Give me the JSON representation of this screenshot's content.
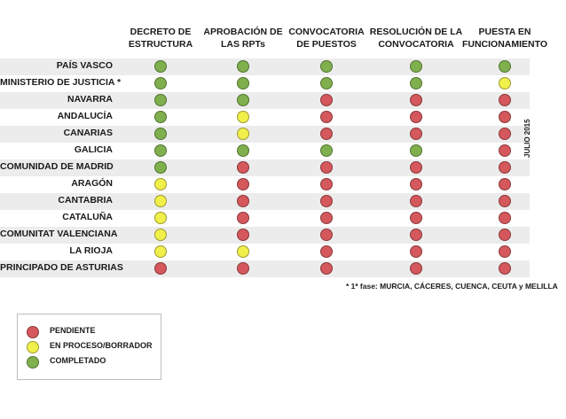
{
  "columns": [
    "DECRETO DE ESTRUCTURA",
    "APROBACIÓN DE LAS RPTs",
    "CONVOCATORIA DE PUESTOS",
    "RESOLUCIÓN DE LA CONVOCATORIA",
    "PUESTA EN FUNCIONAMIENTO"
  ],
  "column_lines": [
    [
      "DECRETO DE",
      "ESTRUCTURA"
    ],
    [
      "APROBACIÓN DE",
      "LAS RPTs"
    ],
    [
      "CONVOCATORIA",
      "DE PUESTOS"
    ],
    [
      "RESOLUCIÓN DE LA",
      "CONVOCATORIA"
    ],
    [
      "PUESTA EN",
      "FUNCIONAMIENTO"
    ]
  ],
  "colors": {
    "red": "#d4585c",
    "yellow": "#f1ef4a",
    "green": "#7fb04d"
  },
  "rows": [
    {
      "label": "PAÍS VASCO",
      "status": [
        "green",
        "green",
        "green",
        "green",
        "green"
      ]
    },
    {
      "label": "MINISTERIO DE JUSTICIA *",
      "status": [
        "green",
        "green",
        "green",
        "green",
        "yellow"
      ]
    },
    {
      "label": "NAVARRA",
      "status": [
        "green",
        "green",
        "red",
        "red",
        "red"
      ]
    },
    {
      "label": "ANDALUCÍA",
      "status": [
        "green",
        "yellow",
        "red",
        "red",
        "red"
      ]
    },
    {
      "label": "CANARIAS",
      "status": [
        "green",
        "yellow",
        "red",
        "red",
        "red"
      ]
    },
    {
      "label": "GALICIA",
      "status": [
        "green",
        "green",
        "green",
        "green",
        "red"
      ]
    },
    {
      "label": "COMUNIDAD DE MADRID",
      "status": [
        "green",
        "red",
        "red",
        "red",
        "red"
      ]
    },
    {
      "label": "ARAGÓN",
      "status": [
        "yellow",
        "red",
        "red",
        "red",
        "red"
      ]
    },
    {
      "label": "CANTABRIA",
      "status": [
        "yellow",
        "red",
        "red",
        "red",
        "red"
      ]
    },
    {
      "label": "CATALUÑA",
      "status": [
        "yellow",
        "red",
        "red",
        "red",
        "red"
      ]
    },
    {
      "label": "COMUNITAT VALENCIANA",
      "status": [
        "yellow",
        "red",
        "red",
        "red",
        "red"
      ]
    },
    {
      "label": "LA RIOJA",
      "status": [
        "yellow",
        "yellow",
        "red",
        "red",
        "red"
      ]
    },
    {
      "label": "PRINCIPADO DE ASTURIAS",
      "status": [
        "red",
        "red",
        "red",
        "red",
        "red"
      ]
    }
  ],
  "footnote": "* 1ª fase: MURCIA, CÁCERES, CUENCA, CEUTA y MELILLA",
  "date_label": "JULIO 2015",
  "legend": [
    {
      "label": "PENDIENTE",
      "color": "red"
    },
    {
      "label": "EN PROCESO/BORRADOR",
      "color": "yellow"
    },
    {
      "label": "COMPLETADO",
      "color": "green"
    }
  ]
}
